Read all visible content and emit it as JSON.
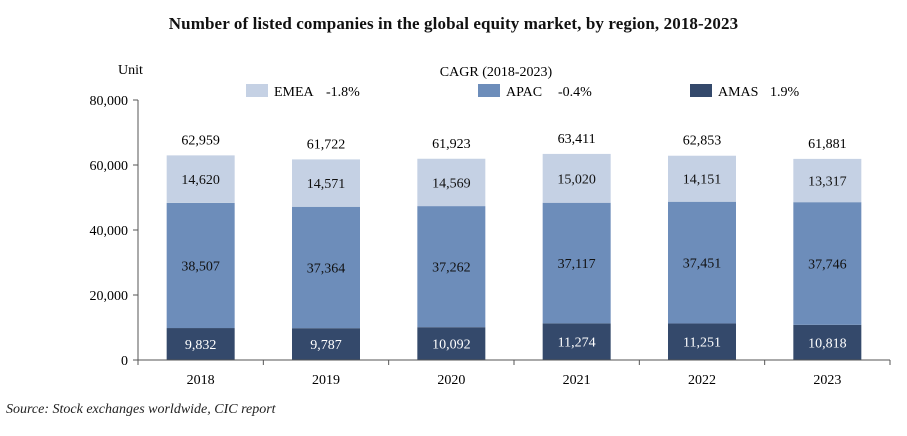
{
  "chart_data": {
    "type": "bar",
    "stacked": true,
    "title": "Number of listed companies in the global equity market, by region, 2018-2023",
    "ylabel": "Unit",
    "ylim": [
      0,
      80000
    ],
    "yticks": [
      0,
      20000,
      40000,
      60000,
      80000
    ],
    "ytick_labels": [
      "0",
      "20,000",
      "40,000",
      "60,000",
      "80,000"
    ],
    "legend_title": "CAGR (2018-2023)",
    "categories": [
      "2018",
      "2019",
      "2020",
      "2021",
      "2022",
      "2023"
    ],
    "series": [
      {
        "name": "AMAS",
        "cagr": "1.9%",
        "color": "#34496b",
        "values": [
          9832,
          9787,
          10092,
          11274,
          11251,
          10818
        ],
        "labels": [
          "9,832",
          "9,787",
          "10,092",
          "11,274",
          "11,251",
          "10,818"
        ]
      },
      {
        "name": "APAC",
        "cagr": "-0.4%",
        "color": "#6d8dba",
        "values": [
          38507,
          37364,
          37262,
          37117,
          37451,
          37746
        ],
        "labels": [
          "38,507",
          "37,364",
          "37,262",
          "37,117",
          "37,451",
          "37,746"
        ]
      },
      {
        "name": "EMEA",
        "cagr": "-1.8%",
        "color": "#c5d1e4",
        "values": [
          14620,
          14571,
          14569,
          15020,
          14151,
          13317
        ],
        "labels": [
          "14,620",
          "14,571",
          "14,569",
          "15,020",
          "14,151",
          "13,317"
        ]
      }
    ],
    "totals": [
      62959,
      61722,
      61923,
      63411,
      62853,
      61881
    ],
    "total_labels": [
      "62,959",
      "61,722",
      "61,923",
      "63,411",
      "62,853",
      "61,881"
    ]
  },
  "source": "Source: Stock exchanges worldwide, CIC report"
}
